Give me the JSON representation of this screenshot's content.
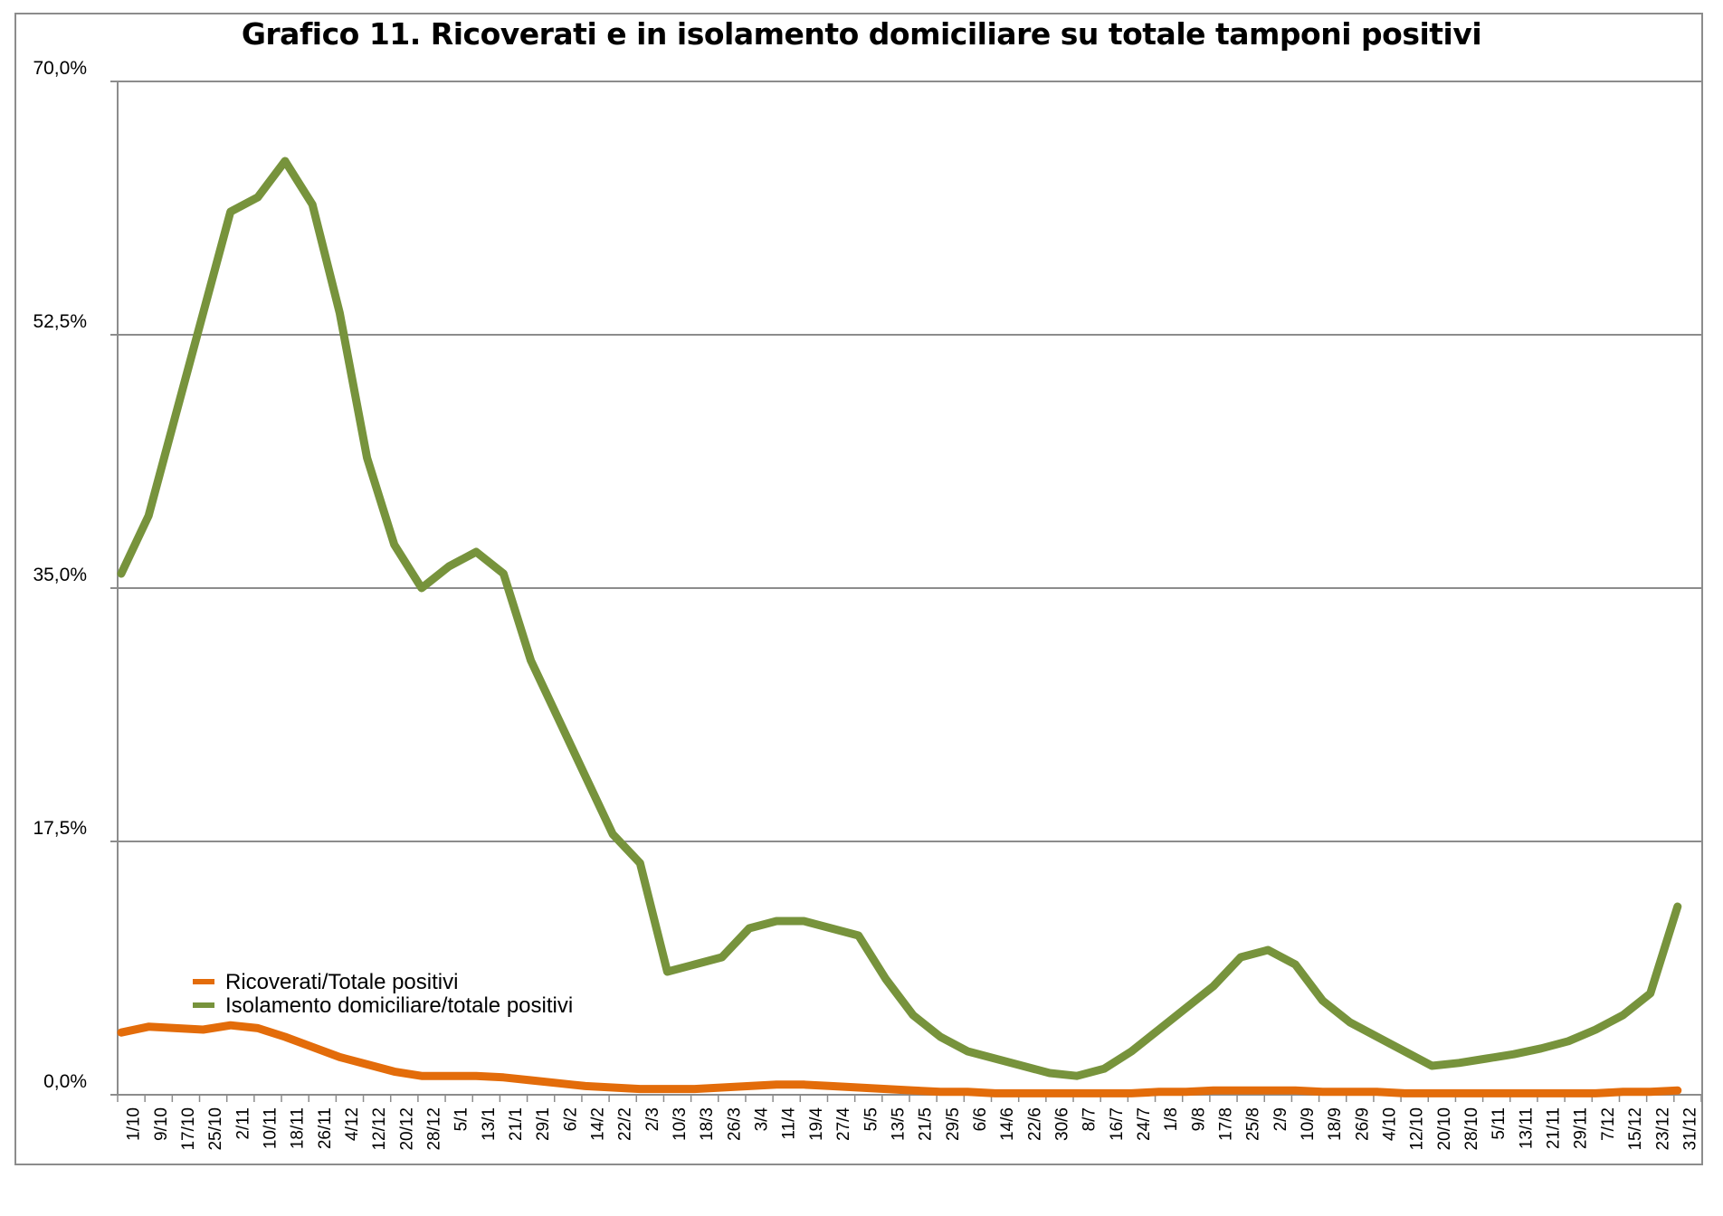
{
  "chart_data": {
    "type": "line",
    "title": "Grafico 11. Ricoverati e in isolamento domiciliare su totale tamponi positivi",
    "xlabel": "",
    "ylabel": "",
    "ylim": [
      0,
      70
    ],
    "yticks": [
      "0,0%",
      "17,5%",
      "35,0%",
      "52,5%",
      "70,0%"
    ],
    "ytick_values": [
      0,
      17.5,
      35,
      52.5,
      70
    ],
    "grid": "horizontal",
    "legend_position": "lower-left",
    "categories": [
      "1/10",
      "9/10",
      "17/10",
      "25/10",
      "2/11",
      "10/11",
      "18/11",
      "26/11",
      "4/12",
      "12/12",
      "20/12",
      "28/12",
      "5/1",
      "13/1",
      "21/1",
      "29/1",
      "6/2",
      "14/2",
      "22/2",
      "2/3",
      "10/3",
      "18/3",
      "26/3",
      "3/4",
      "11/4",
      "19/4",
      "27/4",
      "5/5",
      "13/5",
      "21/5",
      "29/5",
      "6/6",
      "14/6",
      "22/6",
      "30/6",
      "8/7",
      "16/7",
      "24/7",
      "1/8",
      "9/8",
      "17/8",
      "25/8",
      "2/9",
      "10/9",
      "18/9",
      "26/9",
      "4/10",
      "12/10",
      "20/10",
      "28/10",
      "5/11",
      "13/11",
      "21/11",
      "29/11",
      "7/12",
      "15/12",
      "23/12",
      "31/12"
    ],
    "series": [
      {
        "name": "Ricoverati/Totale positivi",
        "color": "#e36c0a",
        "values": [
          4.3,
          4.7,
          4.6,
          4.5,
          4.8,
          4.6,
          4.0,
          3.3,
          2.6,
          2.1,
          1.6,
          1.3,
          1.3,
          1.3,
          1.2,
          1.0,
          0.8,
          0.6,
          0.5,
          0.4,
          0.4,
          0.4,
          0.5,
          0.6,
          0.7,
          0.7,
          0.6,
          0.5,
          0.4,
          0.3,
          0.2,
          0.2,
          0.1,
          0.1,
          0.1,
          0.1,
          0.1,
          0.1,
          0.2,
          0.2,
          0.3,
          0.3,
          0.3,
          0.3,
          0.2,
          0.2,
          0.2,
          0.1,
          0.1,
          0.1,
          0.1,
          0.1,
          0.1,
          0.1,
          0.1,
          0.2,
          0.2,
          0.3
        ]
      },
      {
        "name": "Isolamento domiciliare/totale positivi",
        "color": "#77933c",
        "values": [
          36.0,
          40.0,
          47.0,
          54.0,
          61.0,
          62.0,
          64.5,
          61.5,
          54.0,
          44.0,
          38.0,
          35.0,
          36.5,
          37.5,
          36.0,
          30.0,
          26.0,
          22.0,
          18.0,
          16.0,
          8.5,
          9.0,
          9.5,
          11.5,
          12.0,
          12.0,
          11.5,
          11.0,
          8.0,
          5.5,
          4.0,
          3.0,
          2.5,
          2.0,
          1.5,
          1.3,
          1.8,
          3.0,
          4.5,
          6.0,
          7.5,
          9.5,
          10.0,
          9.0,
          6.5,
          5.0,
          4.0,
          3.0,
          2.0,
          2.2,
          2.5,
          2.8,
          3.2,
          3.7,
          4.5,
          5.5,
          7.0,
          13.0
        ]
      }
    ]
  }
}
